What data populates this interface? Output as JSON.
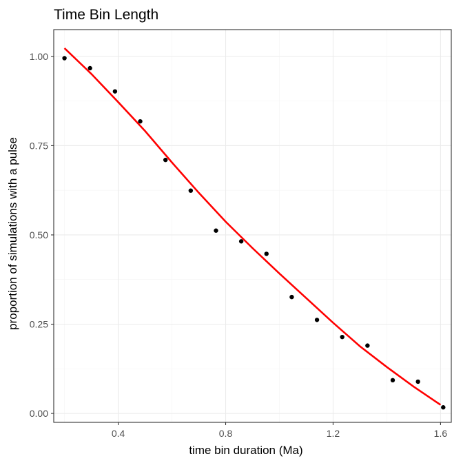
{
  "chart_data": {
    "type": "scatter",
    "title": "Time Bin Length",
    "xlabel": "time bin duration (Ma)",
    "ylabel": "proportion of simulations with a pulse",
    "xlim": [
      0.16,
      1.64
    ],
    "ylim": [
      -0.025,
      1.075
    ],
    "x_ticks": [
      0.4,
      0.8,
      1.2,
      1.6
    ],
    "x_tick_labels": [
      "0.4",
      "0.8",
      "1.2",
      "1.6"
    ],
    "y_ticks": [
      0.0,
      0.25,
      0.5,
      0.75,
      1.0
    ],
    "y_tick_labels": [
      "0.00",
      "0.25",
      "0.50",
      "0.75",
      "1.00"
    ],
    "grid": true,
    "series": [
      {
        "kind": "points",
        "color": "#000000",
        "points": [
          {
            "x": 0.2,
            "y": 0.995
          },
          {
            "x": 0.295,
            "y": 0.967
          },
          {
            "x": 0.388,
            "y": 0.902
          },
          {
            "x": 0.482,
            "y": 0.818
          },
          {
            "x": 0.576,
            "y": 0.71
          },
          {
            "x": 0.67,
            "y": 0.624
          },
          {
            "x": 0.764,
            "y": 0.512
          },
          {
            "x": 0.858,
            "y": 0.482
          },
          {
            "x": 0.952,
            "y": 0.447
          },
          {
            "x": 1.046,
            "y": 0.326
          },
          {
            "x": 1.14,
            "y": 0.262
          },
          {
            "x": 1.234,
            "y": 0.214
          },
          {
            "x": 1.328,
            "y": 0.19
          },
          {
            "x": 1.422,
            "y": 0.093
          },
          {
            "x": 1.516,
            "y": 0.089
          },
          {
            "x": 1.61,
            "y": 0.017
          }
        ]
      },
      {
        "kind": "line",
        "color": "#ff0000",
        "points": [
          {
            "x": 0.2,
            "y": 1.023
          },
          {
            "x": 0.3,
            "y": 0.951
          },
          {
            "x": 0.4,
            "y": 0.872
          },
          {
            "x": 0.5,
            "y": 0.791
          },
          {
            "x": 0.6,
            "y": 0.703
          },
          {
            "x": 0.7,
            "y": 0.618
          },
          {
            "x": 0.8,
            "y": 0.537
          },
          {
            "x": 0.9,
            "y": 0.463
          },
          {
            "x": 1.0,
            "y": 0.392
          },
          {
            "x": 1.1,
            "y": 0.323
          },
          {
            "x": 1.2,
            "y": 0.254
          },
          {
            "x": 1.3,
            "y": 0.188
          },
          {
            "x": 1.4,
            "y": 0.13
          },
          {
            "x": 1.5,
            "y": 0.075
          },
          {
            "x": 1.6,
            "y": 0.024
          }
        ]
      }
    ]
  }
}
